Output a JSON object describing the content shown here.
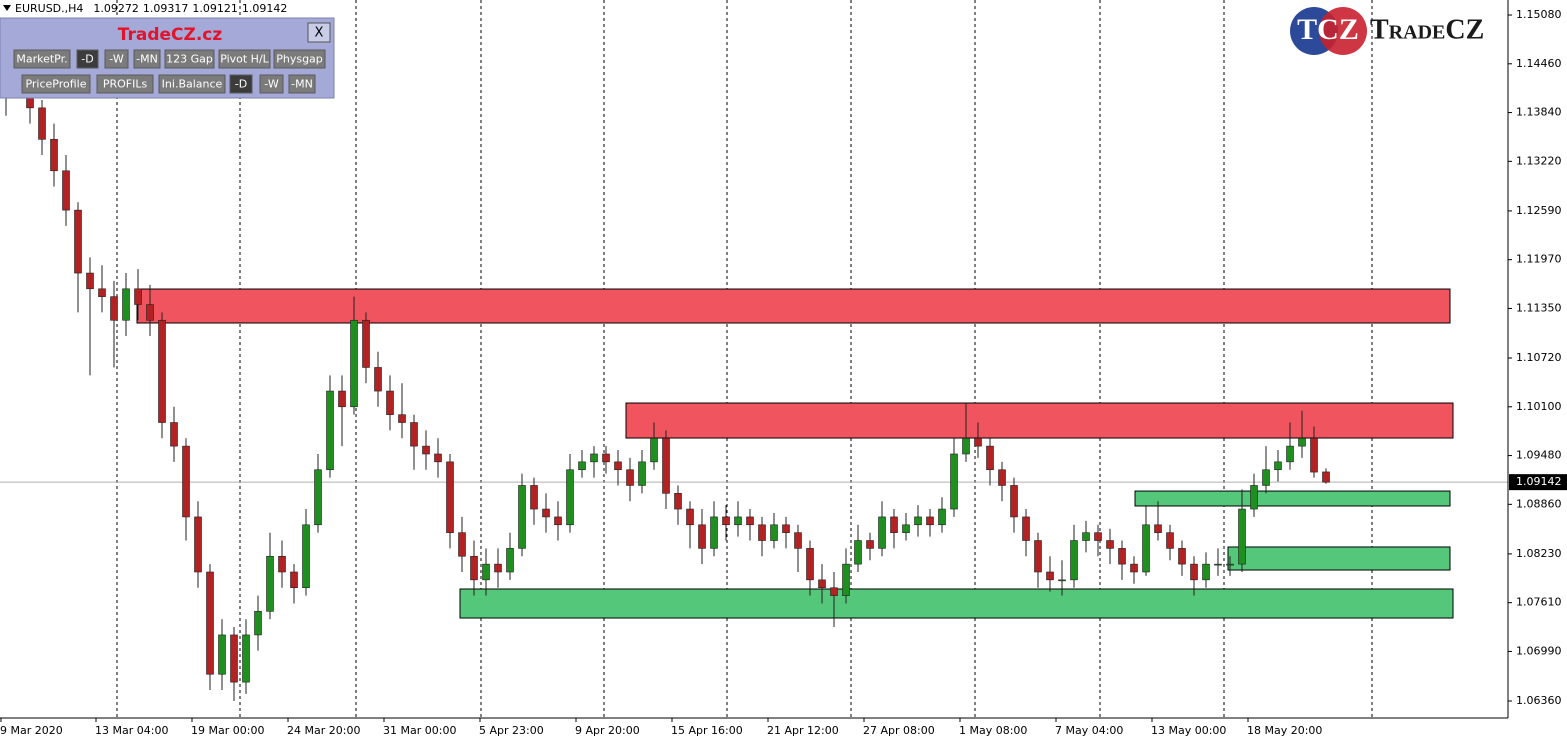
{
  "header": {
    "symbol": "EURUSD.,H4"
  },
  "panel": {
    "title": "TradeCZ.cz",
    "close": "X",
    "rows": [
      [
        "MarketPr.",
        "-D",
        "-W",
        "-MN",
        "123 Gap",
        "Pivot H/L",
        "Physgap"
      ],
      [
        "PriceProfile",
        "PROFILs",
        "Ini.Balance",
        "-D",
        "-W",
        "-MN"
      ]
    ]
  },
  "logo": {
    "mark": "TCZ",
    "name": "TradeCZ"
  },
  "chart_data": {
    "type": "candlestick",
    "up_color": "#1f8f1f",
    "down_color": "#b22222",
    "ylim": [
      1.06144,
      1.15271
    ],
    "yticks": [
      {
        "value": 1.0636,
        "label": "1.06360"
      },
      {
        "value": 1.0699,
        "label": "1.06990"
      },
      {
        "value": 1.0761,
        "label": "1.07610"
      },
      {
        "value": 1.0823,
        "label": "1.08230"
      },
      {
        "value": 1.0886,
        "label": "1.08860"
      },
      {
        "value": 1.0948,
        "label": "1.09480"
      },
      {
        "value": 1.101,
        "label": "1.10100"
      },
      {
        "value": 1.1072,
        "label": "1.10720"
      },
      {
        "value": 1.1135,
        "label": "1.11350"
      },
      {
        "value": 1.1197,
        "label": "1.11970"
      },
      {
        "value": 1.1259,
        "label": "1.12590"
      },
      {
        "value": 1.1322,
        "label": "1.13220"
      },
      {
        "value": 1.1384,
        "label": "1.13840"
      },
      {
        "value": 1.1446,
        "label": "1.14460"
      },
      {
        "value": 1.1508,
        "label": "1.15080"
      }
    ],
    "x_labels": [
      "9 Mar 2020",
      "13 Mar 04:00",
      "19 Mar 00:00",
      "24 Mar 20:00",
      "31 Mar 00:00",
      "5 Apr 23:00",
      "9 Apr 20:00",
      "15 Apr 16:00",
      "21 Apr 12:00",
      "27 Apr 08:00",
      "1 May 08:00",
      "7 May 04:00",
      "13 May 00:00",
      "18 May 20:00"
    ],
    "zones": [
      {
        "color": "#f0545e",
        "from": 1.11597,
        "to": 1.11165
      },
      {
        "color": "#f0545e",
        "from": 1.10148,
        "to": 1.09703
      },
      {
        "color": "#55c77a",
        "from": 1.09029,
        "to": 1.08839
      },
      {
        "color": "#55c77a",
        "from": 1.08318,
        "to": 1.08025
      },
      {
        "color": "#55c77a",
        "from": 1.07784,
        "to": 1.07415
      }
    ],
    "ohlc": [
      [
        1.142,
        1.148,
        1.138,
        1.143
      ],
      [
        1.143,
        1.147,
        1.141,
        1.1455
      ],
      [
        1.1455,
        1.1462,
        1.137,
        1.139
      ],
      [
        1.139,
        1.14,
        1.133,
        1.135
      ],
      [
        1.135,
        1.137,
        1.129,
        1.131
      ],
      [
        1.131,
        1.133,
        1.124,
        1.126
      ],
      [
        1.126,
        1.127,
        1.113,
        1.118
      ],
      [
        1.118,
        1.12,
        1.105,
        1.116
      ],
      [
        1.116,
        1.119,
        1.113,
        1.115
      ],
      [
        1.115,
        1.117,
        1.106,
        1.112
      ],
      [
        1.112,
        1.118,
        1.11,
        1.116
      ],
      [
        1.116,
        1.1185,
        1.112,
        1.114
      ],
      [
        1.114,
        1.1165,
        1.11,
        1.112
      ],
      [
        1.112,
        1.113,
        1.097,
        1.099
      ],
      [
        1.099,
        1.101,
        1.094,
        1.096
      ],
      [
        1.096,
        1.097,
        1.084,
        1.087
      ],
      [
        1.087,
        1.089,
        1.078,
        1.08
      ],
      [
        1.08,
        1.081,
        1.065,
        1.067
      ],
      [
        1.067,
        1.074,
        1.065,
        1.072
      ],
      [
        1.072,
        1.073,
        1.0636,
        1.066
      ],
      [
        1.066,
        1.074,
        1.0645,
        1.072
      ],
      [
        1.072,
        1.077,
        1.07,
        1.075
      ],
      [
        1.075,
        1.085,
        1.074,
        1.082
      ],
      [
        1.082,
        1.084,
        1.078,
        1.08
      ],
      [
        1.08,
        1.081,
        1.076,
        1.078
      ],
      [
        1.078,
        1.088,
        1.077,
        1.086
      ],
      [
        1.086,
        1.095,
        1.085,
        1.093
      ],
      [
        1.093,
        1.105,
        1.092,
        1.103
      ],
      [
        1.103,
        1.105,
        1.096,
        1.101
      ],
      [
        1.101,
        1.115,
        1.1,
        1.112
      ],
      [
        1.112,
        1.113,
        1.104,
        1.106
      ],
      [
        1.106,
        1.108,
        1.101,
        1.103
      ],
      [
        1.103,
        1.105,
        1.098,
        1.1
      ],
      [
        1.1,
        1.104,
        1.097,
        1.099
      ],
      [
        1.099,
        1.1,
        1.093,
        1.096
      ],
      [
        1.096,
        1.098,
        1.093,
        1.095
      ],
      [
        1.095,
        1.097,
        1.092,
        1.094
      ],
      [
        1.094,
        1.095,
        1.083,
        1.085
      ],
      [
        1.085,
        1.087,
        1.08,
        1.082
      ],
      [
        1.082,
        1.084,
        1.077,
        1.079
      ],
      [
        1.079,
        1.083,
        1.077,
        1.081
      ],
      [
        1.081,
        1.083,
        1.078,
        1.08
      ],
      [
        1.08,
        1.085,
        1.079,
        1.083
      ],
      [
        1.083,
        1.0925,
        1.082,
        1.091
      ],
      [
        1.091,
        1.092,
        1.086,
        1.088
      ],
      [
        1.088,
        1.09,
        1.085,
        1.087
      ],
      [
        1.087,
        1.089,
        1.084,
        1.086
      ],
      [
        1.086,
        1.095,
        1.085,
        1.093
      ],
      [
        1.093,
        1.0955,
        1.092,
        1.094
      ],
      [
        1.094,
        1.096,
        1.092,
        1.095
      ],
      [
        1.095,
        1.096,
        1.0925,
        1.094
      ],
      [
        1.094,
        1.0955,
        1.091,
        1.093
      ],
      [
        1.093,
        1.0945,
        1.089,
        1.091
      ],
      [
        1.091,
        1.0955,
        1.09,
        1.094
      ],
      [
        1.094,
        1.099,
        1.093,
        1.097
      ],
      [
        1.097,
        1.098,
        1.088,
        1.09
      ],
      [
        1.09,
        1.091,
        1.086,
        1.088
      ],
      [
        1.088,
        1.089,
        1.083,
        1.086
      ],
      [
        1.086,
        1.088,
        1.081,
        1.083
      ],
      [
        1.083,
        1.089,
        1.082,
        1.087
      ],
      [
        1.087,
        1.0885,
        1.084,
        1.086
      ],
      [
        1.086,
        1.089,
        1.0845,
        1.087
      ],
      [
        1.087,
        1.088,
        1.084,
        1.086
      ],
      [
        1.086,
        1.087,
        1.082,
        1.084
      ],
      [
        1.084,
        1.0875,
        1.083,
        1.086
      ],
      [
        1.086,
        1.087,
        1.083,
        1.085
      ],
      [
        1.085,
        1.086,
        1.08,
        1.083
      ],
      [
        1.083,
        1.084,
        1.077,
        1.079
      ],
      [
        1.079,
        1.081,
        1.076,
        1.078
      ],
      [
        1.078,
        1.08,
        1.073,
        1.077
      ],
      [
        1.077,
        1.083,
        1.076,
        1.081
      ],
      [
        1.081,
        1.086,
        1.08,
        1.084
      ],
      [
        1.084,
        1.085,
        1.0815,
        1.083
      ],
      [
        1.083,
        1.089,
        1.082,
        1.087
      ],
      [
        1.087,
        1.088,
        1.083,
        1.085
      ],
      [
        1.085,
        1.0875,
        1.084,
        1.086
      ],
      [
        1.086,
        1.0885,
        1.0845,
        1.087
      ],
      [
        1.087,
        1.088,
        1.0845,
        1.086
      ],
      [
        1.086,
        1.0895,
        1.085,
        1.088
      ],
      [
        1.088,
        1.097,
        1.087,
        1.095
      ],
      [
        1.095,
        1.1015,
        1.094,
        1.097
      ],
      [
        1.097,
        1.099,
        1.0945,
        1.096
      ],
      [
        1.096,
        1.097,
        1.091,
        1.093
      ],
      [
        1.093,
        1.094,
        1.089,
        1.091
      ],
      [
        1.091,
        1.092,
        1.085,
        1.087
      ],
      [
        1.087,
        1.088,
        1.082,
        1.084
      ],
      [
        1.084,
        1.085,
        1.078,
        1.08
      ],
      [
        1.08,
        1.082,
        1.0775,
        1.079
      ],
      [
        1.079,
        1.0815,
        1.077,
        1.079
      ],
      [
        1.079,
        1.086,
        1.078,
        1.084
      ],
      [
        1.084,
        1.0865,
        1.0825,
        1.085
      ],
      [
        1.085,
        1.086,
        1.082,
        1.084
      ],
      [
        1.084,
        1.0855,
        1.081,
        1.083
      ],
      [
        1.083,
        1.084,
        1.079,
        1.081
      ],
      [
        1.081,
        1.082,
        1.0785,
        1.08
      ],
      [
        1.08,
        1.0885,
        1.0795,
        1.086
      ],
      [
        1.086,
        1.089,
        1.084,
        1.085
      ],
      [
        1.085,
        1.086,
        1.0815,
        1.083
      ],
      [
        1.083,
        1.084,
        1.0795,
        1.081
      ],
      [
        1.081,
        1.082,
        1.077,
        1.079
      ],
      [
        1.079,
        1.0825,
        1.078,
        1.081
      ],
      [
        1.081,
        1.083,
        1.0795,
        1.081
      ],
      [
        1.081,
        1.082,
        1.0795,
        1.081
      ],
      [
        1.081,
        1.0905,
        1.08,
        1.088
      ],
      [
        1.088,
        1.0925,
        1.087,
        1.091
      ],
      [
        1.091,
        1.096,
        1.09,
        1.093
      ],
      [
        1.093,
        1.0955,
        1.0915,
        1.094
      ],
      [
        1.094,
        1.099,
        1.093,
        1.096
      ],
      [
        1.096,
        1.1005,
        1.0945,
        1.097
      ],
      [
        1.097,
        1.0985,
        1.092,
        1.0927
      ],
      [
        1.09272,
        1.09317,
        1.09121,
        1.09142
      ]
    ]
  }
}
